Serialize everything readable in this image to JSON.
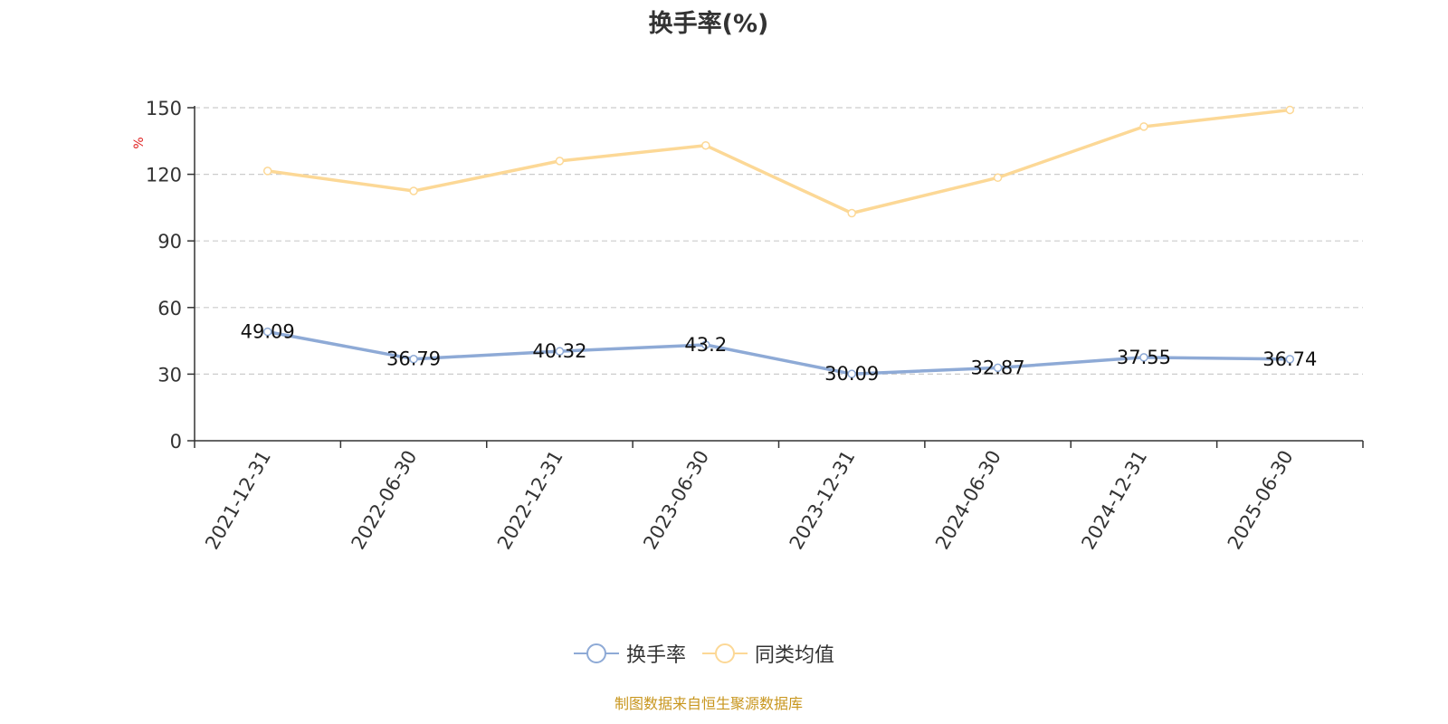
{
  "title": "换手率(%)",
  "y_unit_label": "%",
  "source_note": "制图数据来自恒生聚源数据库",
  "colors": {
    "turnover": "#8eaad6",
    "peer_avg": "#fcd896",
    "unit_label": "#e02020",
    "source_note": "#c8961e",
    "grid": "#cccccc",
    "axis": "#333333"
  },
  "chart_data": {
    "type": "line",
    "title": "换手率(%)",
    "ylabel": "%",
    "xlabel": "",
    "categories": [
      "2021-12-31",
      "2022-06-30",
      "2022-12-31",
      "2023-06-30",
      "2023-12-31",
      "2024-06-30",
      "2024-12-31",
      "2025-06-30"
    ],
    "yticks": [
      0,
      30,
      60,
      90,
      120,
      150
    ],
    "ylim": [
      0,
      150
    ],
    "grid": true,
    "legend_position": "bottom-center",
    "series": [
      {
        "name": "换手率",
        "values": [
          49.09,
          36.79,
          40.32,
          43.2,
          30.09,
          32.87,
          37.55,
          36.74
        ],
        "labels": [
          "49.09",
          "36.79",
          "40.32",
          "43.2",
          "30.09",
          "32.87",
          "37.55",
          "36.74"
        ],
        "show_labels": true
      },
      {
        "name": "同类均值",
        "values": [
          121.5,
          112.5,
          126,
          133,
          102.5,
          118.5,
          141.5,
          149
        ],
        "show_labels": false
      }
    ]
  },
  "legend": {
    "items": [
      "换手率",
      "同类均值"
    ]
  }
}
